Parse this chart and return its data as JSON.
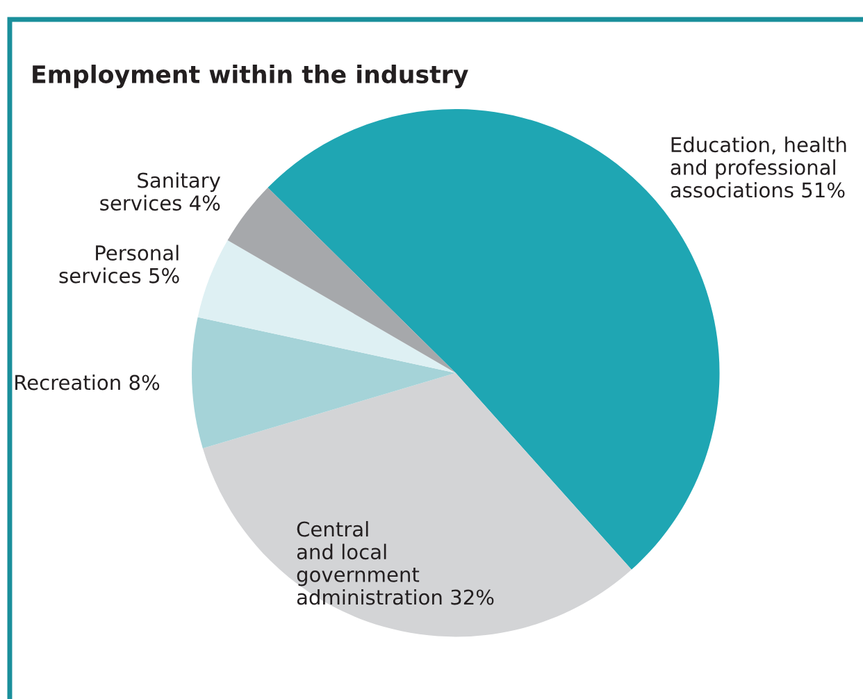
{
  "chart_data": {
    "type": "pie",
    "title": "Employment within the industry",
    "categories": [
      "Education, health\nand professional\nassociations",
      "Central\nand local\ngovernment\nadministration",
      "Recreation",
      "Personal\nservices",
      "Sanitary\nservices"
    ],
    "values": [
      51,
      32,
      8,
      5,
      4
    ],
    "value_labels": [
      "51%",
      "32%",
      "8%",
      "5%",
      "4%"
    ],
    "colors": [
      "#1fa6b3",
      "#d3d4d6",
      "#a5d3d8",
      "#def0f3",
      "#a6a8ab"
    ],
    "legend": false
  }
}
